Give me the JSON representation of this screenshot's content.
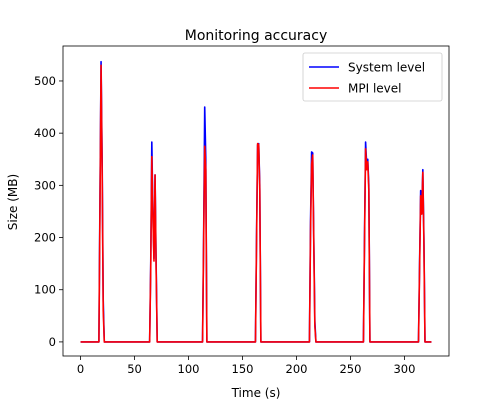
{
  "chart_data": {
    "type": "line",
    "title": "Monitoring accuracy",
    "xlabel": "Time (s)",
    "ylabel": "Size (MB)",
    "xlim": [
      -16.25,
      341.25
    ],
    "ylim": [
      -27,
      567
    ],
    "xticks": [
      0,
      50,
      100,
      150,
      200,
      250,
      300
    ],
    "yticks": [
      0,
      100,
      200,
      300,
      400,
      500
    ],
    "grid": false,
    "legend_position": "top-right",
    "series": [
      {
        "name": "System level",
        "color": "#0000ff",
        "points": [
          [
            0,
            0
          ],
          [
            17,
            0
          ],
          [
            18,
            280
          ],
          [
            19,
            537
          ],
          [
            20,
            350
          ],
          [
            21,
            80
          ],
          [
            22,
            0
          ],
          [
            64,
            0
          ],
          [
            65,
            150
          ],
          [
            66,
            383
          ],
          [
            67,
            250
          ],
          [
            68,
            160
          ],
          [
            69,
            320
          ],
          [
            70,
            150
          ],
          [
            71,
            0
          ],
          [
            113,
            0
          ],
          [
            114,
            200
          ],
          [
            115,
            450
          ],
          [
            116,
            350
          ],
          [
            117,
            0
          ],
          [
            162,
            0
          ],
          [
            163,
            200
          ],
          [
            164,
            378
          ],
          [
            165,
            380
          ],
          [
            166,
            300
          ],
          [
            167,
            0
          ],
          [
            212,
            0
          ],
          [
            213,
            230
          ],
          [
            214,
            364
          ],
          [
            215,
            362
          ],
          [
            216,
            200
          ],
          [
            217,
            40
          ],
          [
            218,
            0
          ],
          [
            262,
            0
          ],
          [
            263,
            200
          ],
          [
            264,
            383
          ],
          [
            265,
            340
          ],
          [
            266,
            350
          ],
          [
            267,
            300
          ],
          [
            268,
            0
          ],
          [
            313,
            0
          ],
          [
            314,
            150
          ],
          [
            315,
            290
          ],
          [
            316,
            250
          ],
          [
            317,
            330
          ],
          [
            318,
            200
          ],
          [
            319,
            0
          ],
          [
            325,
            0
          ]
        ]
      },
      {
        "name": "MPI level",
        "color": "#ff0000",
        "points": [
          [
            0,
            0
          ],
          [
            17,
            0
          ],
          [
            18,
            260
          ],
          [
            19,
            530
          ],
          [
            20,
            330
          ],
          [
            21,
            60
          ],
          [
            22,
            0
          ],
          [
            64,
            0
          ],
          [
            65,
            140
          ],
          [
            66,
            355
          ],
          [
            67,
            240
          ],
          [
            68,
            155
          ],
          [
            69,
            320
          ],
          [
            70,
            140
          ],
          [
            71,
            0
          ],
          [
            113,
            0
          ],
          [
            114,
            190
          ],
          [
            115,
            375
          ],
          [
            116,
            330
          ],
          [
            117,
            0
          ],
          [
            162,
            0
          ],
          [
            163,
            190
          ],
          [
            164,
            380
          ],
          [
            165,
            378
          ],
          [
            166,
            290
          ],
          [
            167,
            0
          ],
          [
            212,
            0
          ],
          [
            213,
            210
          ],
          [
            214,
            340
          ],
          [
            215,
            358
          ],
          [
            216,
            190
          ],
          [
            217,
            30
          ],
          [
            218,
            0
          ],
          [
            262,
            0
          ],
          [
            263,
            190
          ],
          [
            264,
            370
          ],
          [
            265,
            330
          ],
          [
            266,
            345
          ],
          [
            267,
            290
          ],
          [
            268,
            0
          ],
          [
            313,
            0
          ],
          [
            314,
            140
          ],
          [
            315,
            280
          ],
          [
            316,
            245
          ],
          [
            317,
            325
          ],
          [
            318,
            190
          ],
          [
            319,
            0
          ],
          [
            325,
            0
          ]
        ]
      }
    ]
  }
}
